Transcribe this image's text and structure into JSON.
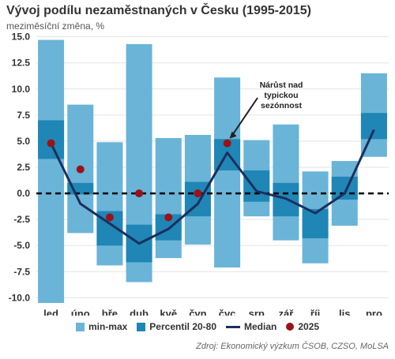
{
  "title": "Vývoj podílu nezaměstnaných v Česku (1995-2015)",
  "subtitle": "meziměsíční změna, %",
  "source": "Zdroj: Ekonomický výzkum ČSOB, CZSO, MoLSA",
  "colors": {
    "range": "#6ab4d8",
    "percentile": "#1f86b6",
    "median": "#1b2f5e",
    "dot": "#9b1217",
    "grid": "#e3e3e3",
    "zero": "#000000"
  },
  "chart_data": {
    "type": "bar",
    "categories": [
      "led",
      "úno",
      "bře",
      "dub",
      "kvě",
      "čvn",
      "čvc",
      "srp",
      "zář",
      "říj",
      "lis",
      "pro"
    ],
    "ylim": [
      -10.5,
      15.5
    ],
    "yticks": [
      -10.0,
      -7.5,
      -5.0,
      -2.5,
      0.0,
      2.5,
      5.0,
      7.5,
      10.0,
      12.5,
      15.0
    ],
    "ytick_labels": [
      "-10.0",
      "-7.5",
      "-5.0",
      "-2.5",
      "0.0",
      "2.5",
      "5.0",
      "7.5",
      "10.0",
      "12.5",
      "15.0"
    ],
    "grid": true,
    "series": [
      {
        "name": "min-max",
        "type": "range",
        "min": [
          -10.5,
          -3.8,
          -6.9,
          -8.5,
          -6.2,
          -4.9,
          -7.1,
          -2.2,
          -4.5,
          -6.7,
          -3.1,
          3.5
        ],
        "max": [
          14.7,
          8.5,
          4.9,
          14.3,
          5.3,
          5.6,
          11.1,
          5.1,
          6.6,
          2.1,
          3.1,
          11.5
        ]
      },
      {
        "name": "Percentil 20-80",
        "type": "range",
        "low": [
          3.3,
          -0.1,
          -5.0,
          -6.6,
          -4.5,
          -2.2,
          2.2,
          -0.8,
          -2.2,
          -4.3,
          -0.6,
          5.2
        ],
        "high": [
          7.0,
          1.0,
          -1.7,
          -3.0,
          -2.0,
          1.1,
          5.2,
          2.2,
          1.0,
          -1.5,
          1.6,
          7.7
        ]
      },
      {
        "name": "Median",
        "type": "line",
        "values": [
          4.8,
          -1.0,
          -2.9,
          -4.8,
          -3.4,
          -1.0,
          3.9,
          0.2,
          -0.5,
          -1.9,
          0.0,
          6.1
        ]
      },
      {
        "name": "2025",
        "type": "scatter",
        "values": [
          4.8,
          2.3,
          -2.3,
          0.0,
          -2.3,
          0.0,
          4.8,
          null,
          null,
          null,
          null,
          null
        ]
      }
    ],
    "annotation": {
      "text": [
        "Nárůst nad",
        "typickou",
        "sezónnost"
      ],
      "target_category": "čvc",
      "target_value": 4.8
    },
    "legend_placement": "bottom"
  }
}
